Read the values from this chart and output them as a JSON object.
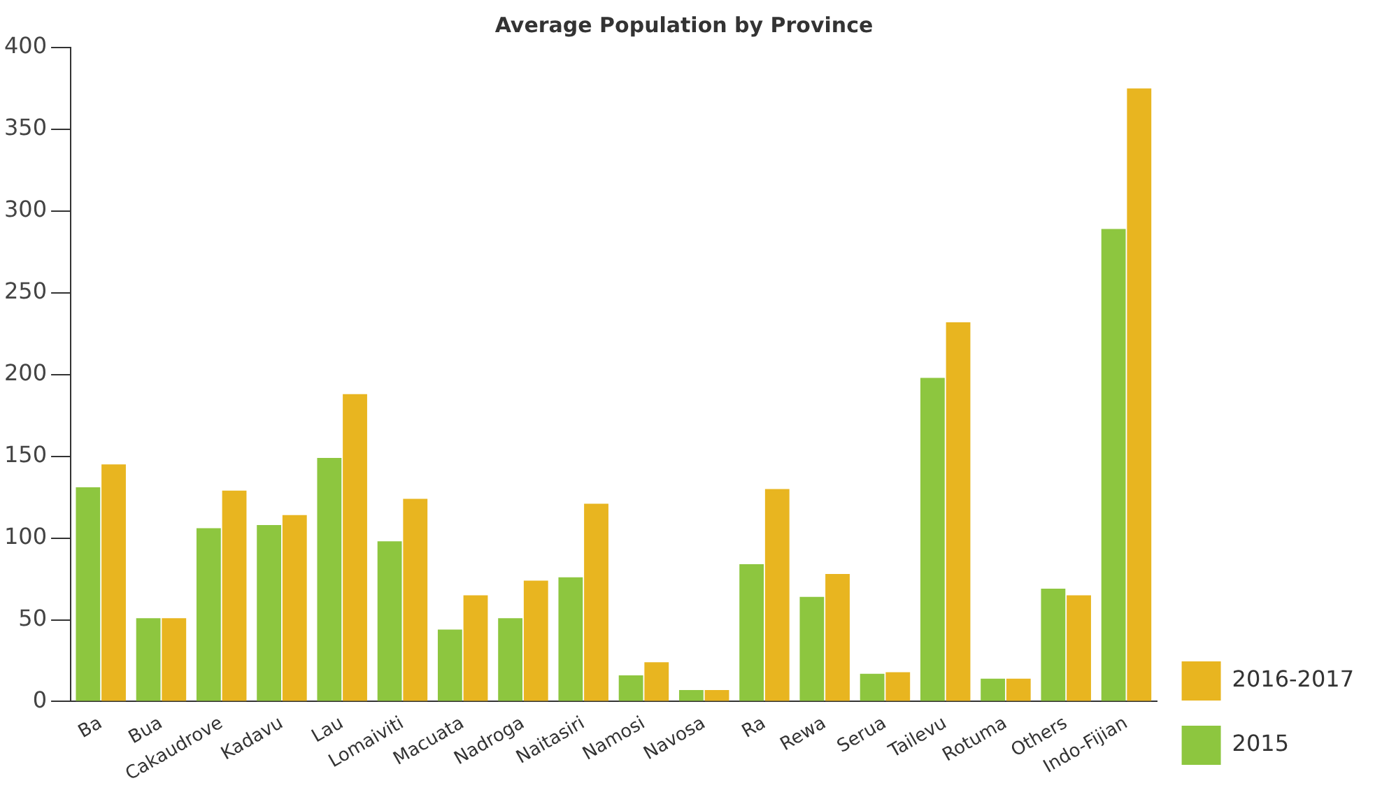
{
  "chart_data": {
    "type": "bar",
    "title": "Average Population by Province",
    "categories": [
      "Ba",
      "Bua",
      "Cakaudrove",
      "Kadavu",
      "Lau",
      "Lomaiviti",
      "Macuata",
      "Nadroga",
      "Naitasiri",
      "Namosi",
      "Navosa",
      "Ra",
      "Rewa",
      "Serua",
      "Tailevu",
      "Rotuma",
      "Others",
      "Indo-Fijian"
    ],
    "series": [
      {
        "name": "2015",
        "color": "#8dc63f",
        "values": [
          131,
          51,
          106,
          108,
          149,
          98,
          44,
          51,
          76,
          16,
          7,
          84,
          64,
          17,
          198,
          14,
          69,
          289
        ]
      },
      {
        "name": "2016-2017",
        "color": "#e8b520",
        "values": [
          145,
          51,
          129,
          114,
          188,
          124,
          65,
          74,
          121,
          24,
          7,
          130,
          78,
          18,
          232,
          14,
          65,
          375
        ]
      }
    ],
    "ylim": [
      0,
      400
    ],
    "yticks": [
      0,
      50,
      100,
      150,
      200,
      250,
      300,
      350,
      400
    ],
    "grid": false,
    "legend": "bottom right"
  }
}
